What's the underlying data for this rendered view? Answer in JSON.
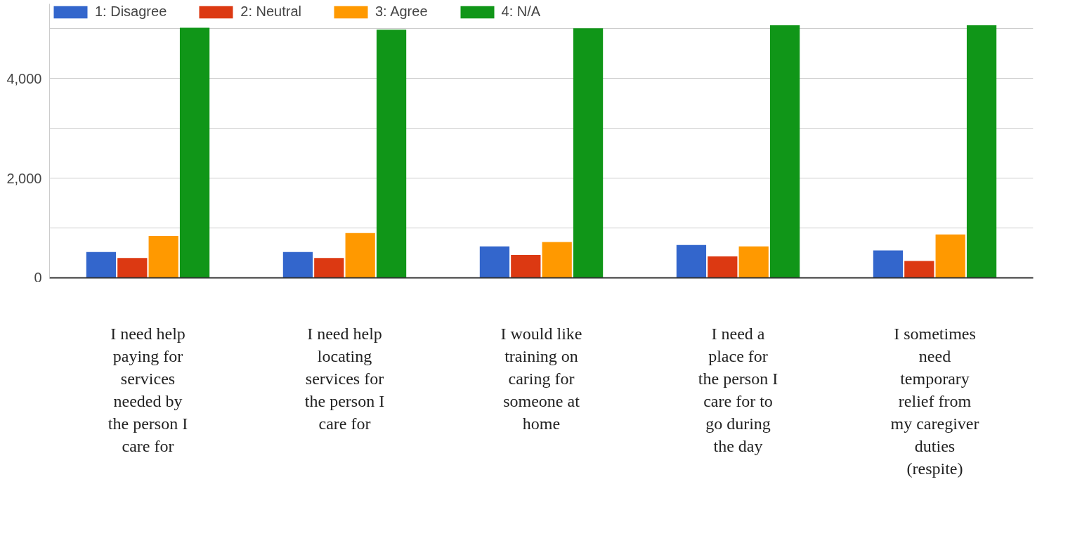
{
  "chart_data": {
    "type": "bar",
    "categories": [
      "I need help paying for services needed by the person I care for",
      "I need help locating services for the person I care for",
      "I would like training on caring for someone at home",
      "I need a place for the person I care for to go during the day",
      "I sometimes need temporary relief from my caregiver duties (respite)"
    ],
    "series": [
      {
        "name": "1: Disagree",
        "color": "#3366cc",
        "values": [
          520,
          520,
          630,
          660,
          550
        ]
      },
      {
        "name": "2: Neutral",
        "color": "#dc3912",
        "values": [
          400,
          400,
          460,
          430,
          340
        ]
      },
      {
        "name": "3: Agree",
        "color": "#ff9900",
        "values": [
          840,
          900,
          720,
          630,
          870
        ]
      },
      {
        "name": "4: N/A",
        "color": "#109618",
        "values": [
          5020,
          4980,
          5010,
          5070,
          5070
        ]
      }
    ],
    "ylim": [
      0,
      5500
    ],
    "yticks": [
      0,
      {
        "value": 1000,
        "label": null
      },
      {
        "value": 2000,
        "label": "2,000"
      },
      {
        "value": 3000,
        "label": null
      },
      {
        "value": 4000,
        "label": "4,000"
      },
      {
        "value": 5000,
        "label": null
      }
    ],
    "grid": "y",
    "legend": "top left"
  }
}
